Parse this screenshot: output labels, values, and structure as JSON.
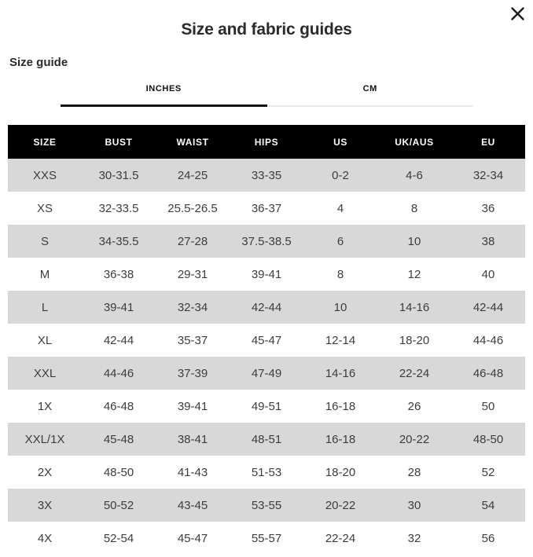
{
  "modal": {
    "title": "Size and fabric guides",
    "close_icon": "x-icon"
  },
  "section": {
    "label": "Size guide"
  },
  "tabs": [
    {
      "label": "INCHES",
      "active": true
    },
    {
      "label": "CM",
      "active": false
    }
  ],
  "table": {
    "columns": [
      "SIZE",
      "BUST",
      "WAIST",
      "HIPS",
      "US",
      "UK/AUS",
      "EU"
    ],
    "rows": [
      [
        "XXS",
        "30-31.5",
        "24-25",
        "33-35",
        "0-2",
        "4-6",
        "32-34"
      ],
      [
        "XS",
        "32-33.5",
        "25.5-26.5",
        "36-37",
        "4",
        "8",
        "36"
      ],
      [
        "S",
        "34-35.5",
        "27-28",
        "37.5-38.5",
        "6",
        "10",
        "38"
      ],
      [
        "M",
        "36-38",
        "29-31",
        "39-41",
        "8",
        "12",
        "40"
      ],
      [
        "L",
        "39-41",
        "32-34",
        "42-44",
        "10",
        "14-16",
        "42-44"
      ],
      [
        "XL",
        "42-44",
        "35-37",
        "45-47",
        "12-14",
        "18-20",
        "44-46"
      ],
      [
        "XXL",
        "44-46",
        "37-39",
        "47-49",
        "14-16",
        "22-24",
        "46-48"
      ],
      [
        "1X",
        "46-48",
        "39-41",
        "49-51",
        "16-18",
        "26",
        "50"
      ],
      [
        "XXL/1X",
        "45-48",
        "38-41",
        "48-51",
        "16-18",
        "20-22",
        "48-50"
      ],
      [
        "2X",
        "48-50",
        "41-43",
        "51-53",
        "18-20",
        "28",
        "52"
      ],
      [
        "3X",
        "50-52",
        "43-45",
        "53-55",
        "20-22",
        "30",
        "54"
      ],
      [
        "4X",
        "52-54",
        "45-47",
        "55-57",
        "22-24",
        "32",
        "56"
      ]
    ]
  },
  "colors": {
    "header_bg": "#000000",
    "header_text": "#ffffff",
    "stripe_bg": "#d8d8d8",
    "cell_text": "#3d3d3d",
    "active_tab_underline": "#111111",
    "inactive_tab_underline": "#e9e9e9"
  }
}
